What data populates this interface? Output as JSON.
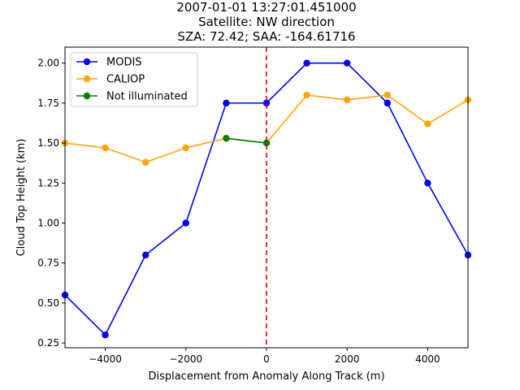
{
  "chart_data": {
    "type": "line",
    "title_lines": [
      "2007-01-01 13:27:01.451000",
      "Satellite: NW direction",
      "SZA: 72.42; SAA: -164.61716"
    ],
    "xlabel": "Displacement from Anomaly Along Track (m)",
    "ylabel": "Cloud Top Height (km)",
    "xlim": [
      -5000,
      5000
    ],
    "ylim": [
      0.22,
      2.1
    ],
    "xticks": [
      -4000,
      -2000,
      0,
      2000,
      4000
    ],
    "xtick_labels": [
      "−4000",
      "−2000",
      "0",
      "2000",
      "4000"
    ],
    "yticks": [
      0.25,
      0.5,
      0.75,
      1.0,
      1.25,
      1.5,
      1.75,
      2.0
    ],
    "ytick_labels": [
      "0.25",
      "0.50",
      "0.75",
      "1.00",
      "1.25",
      "1.50",
      "1.75",
      "2.00"
    ],
    "vline": {
      "x": 0,
      "color": "#e00000",
      "style": "dashed"
    },
    "legend_position": "upper-left",
    "series": [
      {
        "name": "MODIS",
        "color": "#0000ff",
        "x": [
          -5000,
          -4000,
          -3000,
          -2000,
          -1000,
          0,
          1000,
          2000,
          3000,
          4000,
          5000
        ],
        "y": [
          0.55,
          0.3,
          0.8,
          1.0,
          1.75,
          1.75,
          2.0,
          2.0,
          1.75,
          1.25,
          0.8
        ]
      },
      {
        "name": "CALIOP",
        "color": "#ffa500",
        "x": [
          -5000,
          -4000,
          -3000,
          -2000,
          -1000,
          0,
          1000,
          2000,
          3000,
          4000,
          5000
        ],
        "y": [
          1.5,
          1.47,
          1.38,
          1.47,
          1.53,
          1.5,
          1.8,
          1.77,
          1.8,
          1.62,
          1.77
        ]
      },
      {
        "name": "Not illuminated",
        "color": "#008000",
        "x": [
          -1000,
          0
        ],
        "y": [
          1.53,
          1.5
        ]
      }
    ]
  }
}
